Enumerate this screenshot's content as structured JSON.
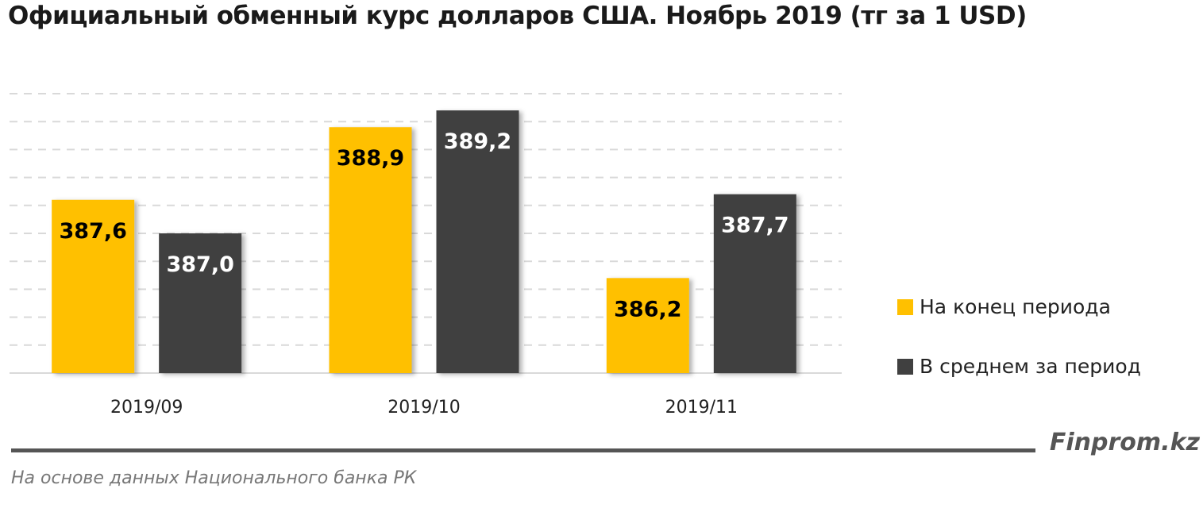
{
  "chart_data": {
    "type": "bar",
    "title": "Официальный обменный курс долларов США. Ноябрь 2019 (тг за 1 USD)",
    "categories": [
      "2019/09",
      "2019/10",
      "2019/11"
    ],
    "series": [
      {
        "name": "На конец периода",
        "values": [
          387.6,
          388.9,
          386.2
        ],
        "labels": [
          "387,6",
          "388,9",
          "386,2"
        ],
        "color": "#FFC000",
        "label_color": "#000000"
      },
      {
        "name": "В среднем за период",
        "values": [
          387.0,
          389.2,
          387.7
        ],
        "labels": [
          "387,0",
          "389,2",
          "387,7"
        ],
        "color": "#404040",
        "label_color": "#FFFFFF"
      }
    ],
    "ylim": [
      384.5,
      389.5
    ],
    "grid_step": 0.5,
    "grid": true,
    "y_ticks_shown": false,
    "legend_position": "right"
  },
  "footer": {
    "brand": "Finprom.kz",
    "source": "На основе данных Национального банка РК"
  }
}
